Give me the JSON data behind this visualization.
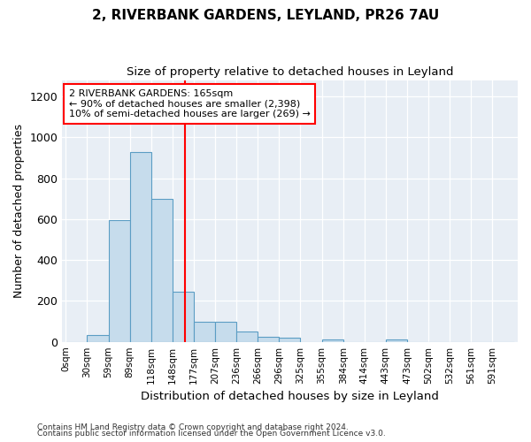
{
  "title1": "2, RIVERBANK GARDENS, LEYLAND, PR26 7AU",
  "title2": "Size of property relative to detached houses in Leyland",
  "xlabel": "Distribution of detached houses by size in Leyland",
  "ylabel": "Number of detached properties",
  "bar_lefts": [
    0,
    29.5,
    59,
    88.5,
    118,
    147.5,
    177,
    206.5,
    236,
    265.5,
    295,
    324.5,
    354,
    383.5,
    413,
    442.5,
    472,
    501.5,
    531,
    560.5,
    590
  ],
  "bar_width": 29.5,
  "bar_heights": [
    0,
    35,
    595,
    930,
    700,
    245,
    98,
    98,
    52,
    25,
    20,
    0,
    10,
    0,
    0,
    10,
    0,
    0,
    0,
    0,
    0
  ],
  "bar_color": "#c6dcec",
  "bar_edge_color": "#5b9dc4",
  "tick_labels": [
    "0sqm",
    "30sqm",
    "59sqm",
    "89sqm",
    "118sqm",
    "148sqm",
    "177sqm",
    "207sqm",
    "236sqm",
    "266sqm",
    "296sqm",
    "325sqm",
    "355sqm",
    "384sqm",
    "414sqm",
    "443sqm",
    "473sqm",
    "502sqm",
    "532sqm",
    "561sqm",
    "591sqm"
  ],
  "tick_positions": [
    0,
    29.5,
    59,
    88.5,
    118,
    147.5,
    177,
    206.5,
    236,
    265.5,
    295,
    324.5,
    354,
    383.5,
    413,
    442.5,
    472,
    501.5,
    531,
    560.5,
    590
  ],
  "xlim": [
    -5,
    625
  ],
  "ylim": [
    0,
    1280
  ],
  "yticks": [
    0,
    200,
    400,
    600,
    800,
    1000,
    1200
  ],
  "red_line_x": 165,
  "annotation_title": "2 RIVERBANK GARDENS: 165sqm",
  "annotation_line1": "← 90% of detached houses are smaller (2,398)",
  "annotation_line2": "10% of semi-detached houses are larger (269) →",
  "footer1": "Contains HM Land Registry data © Crown copyright and database right 2024.",
  "footer2": "Contains public sector information licensed under the Open Government Licence v3.0.",
  "bg_color": "#ffffff",
  "plot_bg_color": "#e8eef5",
  "grid_color": "#ffffff"
}
